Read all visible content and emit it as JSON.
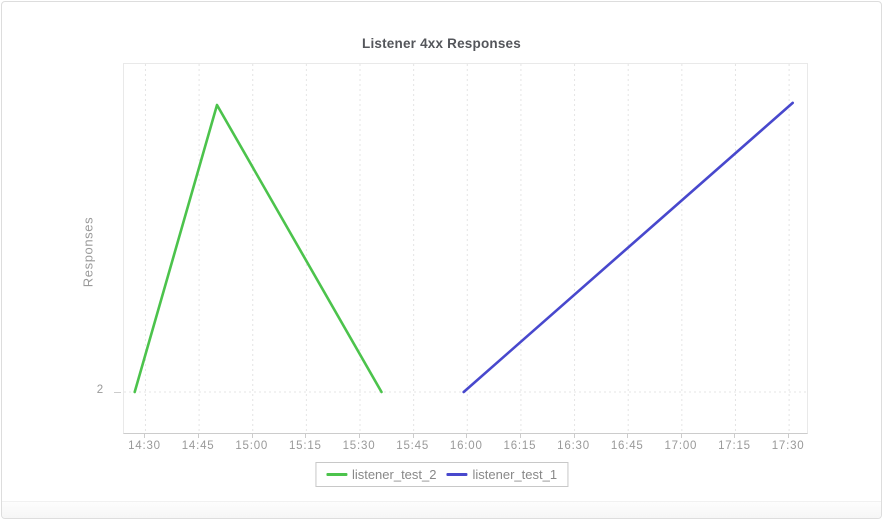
{
  "page": {
    "background": "#ffffff",
    "card_border": "#dddddd"
  },
  "chart": {
    "title": "Listener 4xx Responses",
    "y_axis_title": "Responses",
    "y_tick_label": "2",
    "legend": {
      "entries": [
        {
          "label": "listener_test_2",
          "color": "#4cc34c"
        },
        {
          "label": "listener_test_1",
          "color": "#4848cd"
        }
      ]
    }
  },
  "chart_data": {
    "type": "line",
    "title": "Listener 4xx Responses",
    "xlabel": "",
    "ylabel": "Responses",
    "xlim": [
      "14:24",
      "17:35"
    ],
    "ylim": [
      0,
      18
    ],
    "x_ticks": [
      "14:30",
      "14:45",
      "15:00",
      "15:15",
      "15:30",
      "15:45",
      "16:00",
      "16:15",
      "16:30",
      "16:45",
      "17:00",
      "17:15",
      "17:30"
    ],
    "y_ticks_labeled": [
      2
    ],
    "grid": {
      "vertical": "dashed",
      "horizontal_lines_at_y": [
        2
      ],
      "color": "#e4e4e4"
    },
    "legend_position": "bottom-center",
    "series": [
      {
        "name": "listener_test_2",
        "color": "#4cc34c",
        "points": [
          {
            "x": "14:27",
            "y": 2
          },
          {
            "x": "14:50",
            "y": 16
          },
          {
            "x": "15:36",
            "y": 2
          }
        ]
      },
      {
        "name": "listener_test_1",
        "color": "#4848cd",
        "points": [
          {
            "x": "15:59",
            "y": 2
          },
          {
            "x": "17:31",
            "y": 16.1
          }
        ]
      }
    ]
  }
}
